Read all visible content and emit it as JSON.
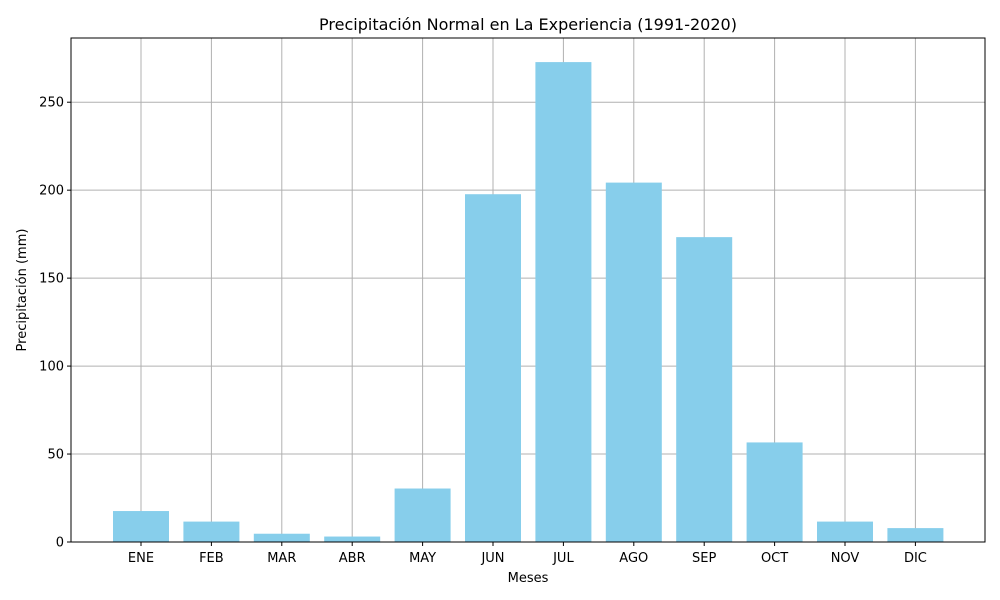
{
  "chart_data": {
    "type": "bar",
    "title": "Precipitación Normal en La Experiencia (1991-2020)",
    "xlabel": "Meses",
    "ylabel": "Precipitación (mm)",
    "categories": [
      "ENE",
      "FEB",
      "MAR",
      "ABR",
      "MAY",
      "JUN",
      "JUL",
      "AGO",
      "SEP",
      "OCT",
      "NOV",
      "DIC"
    ],
    "values": [
      17.6,
      11.6,
      4.7,
      3.1,
      30.4,
      197.7,
      272.8,
      204.3,
      173.3,
      56.6,
      11.6,
      7.9
    ],
    "ylim": [
      0,
      286.5
    ],
    "yticks": [
      0,
      50,
      100,
      150,
      200,
      250
    ],
    "grid": true,
    "bar_color": "#87ceeb",
    "grid_color": "#b0b0b0"
  }
}
